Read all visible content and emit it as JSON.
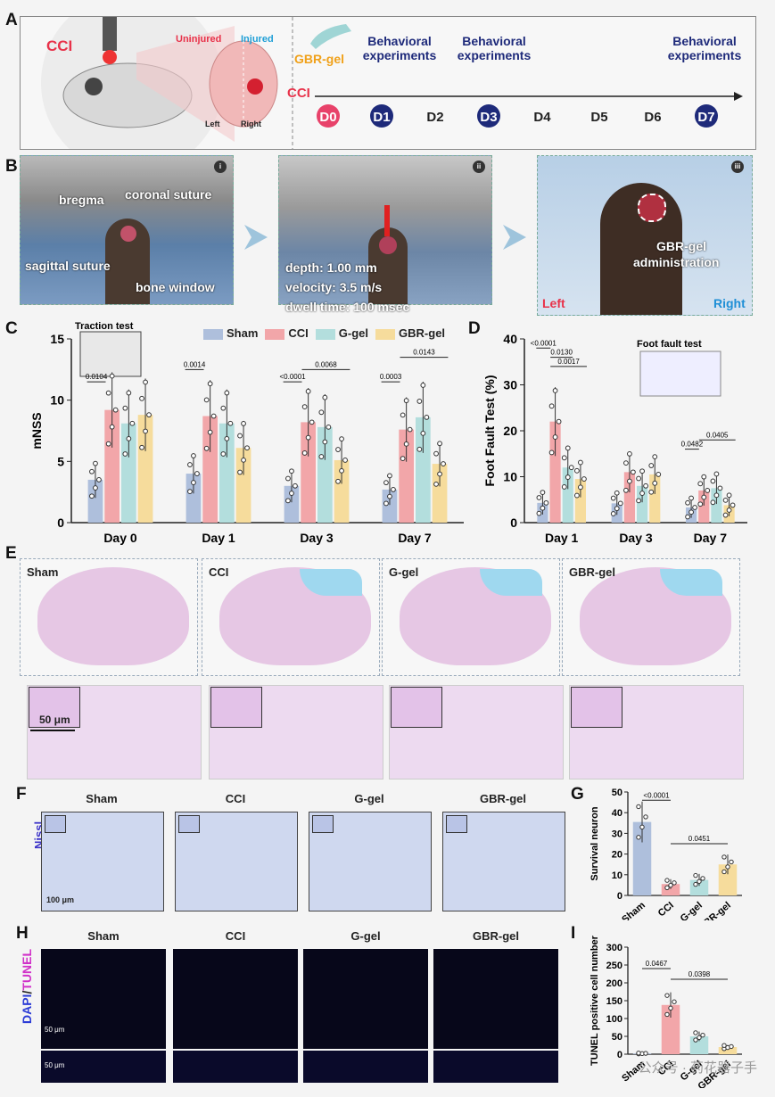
{
  "panel_labels": {
    "a": "A",
    "b": "B",
    "c": "C",
    "d": "D",
    "e": "E",
    "f": "F",
    "g": "G",
    "h": "H",
    "i": "I"
  },
  "panelA": {
    "cci": "CCI",
    "uninjured": "Uninjured",
    "injured": "Injured",
    "left": "Left",
    "right": "Right",
    "gbr_gel": "GBR-gel",
    "cci_axis": "CCI",
    "behavioral": "Behavioral",
    "experiments": "experiments",
    "days": [
      "D0",
      "D1",
      "D2",
      "D3",
      "D4",
      "D5",
      "D6",
      "D7"
    ]
  },
  "panelB": {
    "i": "i",
    "ii": "ii",
    "iii": "iii",
    "bregma": "bregma",
    "coronal": "coronal suture",
    "sagittal": "sagittal suture",
    "bone_window": "bone window",
    "depth": "depth: 1.00 mm",
    "velocity": "velocity: 3.5 m/s",
    "dwell": "dwell time: 100 msec",
    "gbr_gel": "GBR-gel",
    "administration": "administration",
    "left": "Left",
    "right": "Right"
  },
  "colors": {
    "sham": "#aebfdc",
    "cci": "#f2a6a9",
    "ggel": "#b3dedd",
    "gbrgel": "#f6dc9c",
    "dark_blue": "#1e2a7a",
    "pink": "#e8426a",
    "orange": "#f0a11a"
  },
  "panelC": {
    "inset": "Traction test",
    "legend": [
      "Sham",
      "CCI",
      "G-gel",
      "GBR-gel"
    ],
    "pvals": [
      "0.0104",
      "0.0014",
      "<0.0001",
      "0.0068",
      "0.0003",
      "0.0143"
    ]
  },
  "panelD": {
    "inset": "Foot fault test",
    "pvals": [
      "<0.0001",
      "0.0130",
      "0.0017",
      "0.0482",
      "0.0405"
    ]
  },
  "panelE": {
    "groups": [
      "Sham",
      "CCI",
      "G-gel",
      "GBR-gel"
    ],
    "scale": "50 μm"
  },
  "panelF": {
    "groups": [
      "Sham",
      "CCI",
      "G-gel",
      "GBR-gel"
    ],
    "stain": "Nissl",
    "scale": "100 μm"
  },
  "panelH": {
    "groups": [
      "Sham",
      "CCI",
      "G-gel",
      "GBR-gel"
    ],
    "stain_a": "DAPI",
    "stain_sep": "/",
    "stain_b": "TUNEL",
    "scale1": "50 μm",
    "scale2": "50 μm"
  },
  "panelG": {
    "pvals": [
      "<0.0001",
      "0.0451"
    ]
  },
  "panelI": {
    "pvals": [
      "0.0467",
      "0.0398"
    ]
  },
  "watermark": "公众号 · 药花器子手",
  "chart_data": [
    {
      "type": "bar",
      "panel": "C",
      "ylabel": "mNSS",
      "ylim": [
        0,
        15
      ],
      "yticks": [
        0,
        5,
        10,
        15
      ],
      "categories": [
        "Day 0",
        "Day 1",
        "Day 3",
        "Day 7"
      ],
      "series": [
        {
          "name": "Sham",
          "values": [
            3.5,
            4.0,
            3.0,
            2.7
          ]
        },
        {
          "name": "CCI",
          "values": [
            9.2,
            8.7,
            8.2,
            7.6
          ]
        },
        {
          "name": "G-gel",
          "values": [
            8.1,
            8.1,
            7.8,
            8.6
          ]
        },
        {
          "name": "GBR-gel",
          "values": [
            8.8,
            6.1,
            5.1,
            4.8
          ]
        }
      ]
    },
    {
      "type": "bar",
      "panel": "D",
      "ylabel": "Foot Fault Test (%)",
      "ylim": [
        0,
        40
      ],
      "yticks": [
        0,
        10,
        20,
        30,
        40
      ],
      "categories": [
        "Day 1",
        "Day 3",
        "Day 7"
      ],
      "series": [
        {
          "name": "Sham",
          "values": [
            4.3,
            4.2,
            3.3
          ]
        },
        {
          "name": "CCI",
          "values": [
            22.0,
            11.0,
            7.0
          ]
        },
        {
          "name": "G-gel",
          "values": [
            12.0,
            8.0,
            7.5
          ]
        },
        {
          "name": "GBR-gel",
          "values": [
            9.5,
            10.5,
            3.8
          ]
        }
      ]
    },
    {
      "type": "bar",
      "panel": "G",
      "ylabel": "Survival neuron",
      "ylim": [
        0,
        50
      ],
      "yticks": [
        0,
        10,
        20,
        30,
        40,
        50
      ],
      "categories": [
        "Sham",
        "CCI",
        "G-gel",
        "GBR-gel"
      ],
      "values": [
        35.5,
        5.5,
        7.5,
        15.0
      ]
    },
    {
      "type": "bar",
      "panel": "I",
      "ylabel": "TUNEL positive cell number",
      "ylim": [
        0,
        300
      ],
      "yticks": [
        0,
        50,
        100,
        150,
        200,
        250,
        300
      ],
      "categories": [
        "Sham",
        "CCI",
        "G-gel",
        "GBR-gel"
      ],
      "values": [
        2,
        138,
        50,
        20
      ]
    }
  ]
}
